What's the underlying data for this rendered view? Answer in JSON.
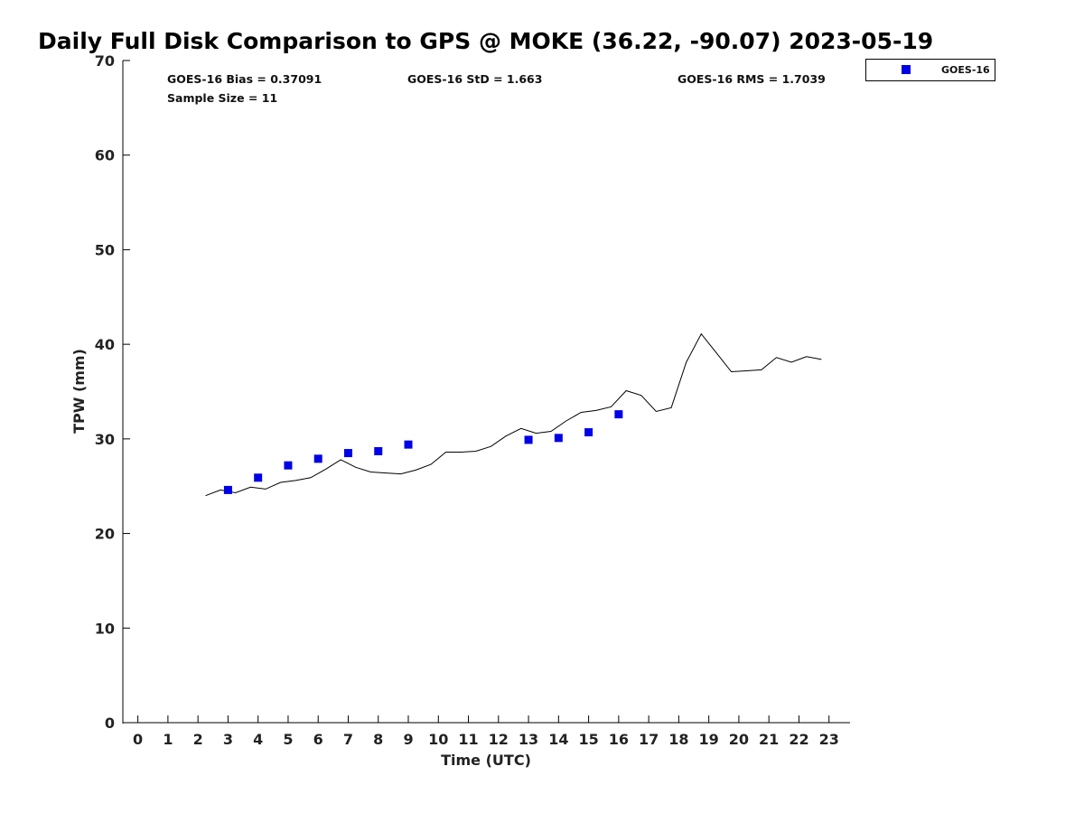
{
  "chart_data": {
    "type": "scatter",
    "title": "Daily Full Disk Comparison to GPS @ MOKE (36.22, -90.07) 2023-05-19",
    "xlabel": "Time (UTC)",
    "ylabel": "TPW (mm)",
    "xlim": [
      -0.5,
      23.7
    ],
    "ylim": [
      0,
      70
    ],
    "x_ticks": [
      0,
      1,
      2,
      3,
      4,
      5,
      6,
      7,
      8,
      9,
      10,
      11,
      12,
      13,
      14,
      15,
      16,
      17,
      18,
      19,
      20,
      21,
      22,
      23
    ],
    "y_ticks": [
      0,
      10,
      20,
      30,
      40,
      50,
      60,
      70
    ],
    "grid": false,
    "legend_position": "top-right",
    "stats": {
      "bias": "GOES-16 Bias = 0.37091",
      "std": "GOES-16 StD = 1.663",
      "rms": "GOES-16 RMS = 1.7039",
      "sample_size": "Sample Size = 11"
    },
    "series": [
      {
        "name": "GOES-16",
        "kind": "scatter",
        "marker": "square",
        "color": "#0000e6",
        "x": [
          3,
          4,
          5,
          6,
          7,
          8,
          9,
          13,
          14,
          15,
          16
        ],
        "y": [
          24.6,
          25.9,
          27.2,
          27.9,
          28.5,
          28.7,
          29.4,
          29.9,
          30.1,
          30.7,
          32.6
        ]
      },
      {
        "kind": "line",
        "color": "#000000",
        "x": [
          2.25,
          2.75,
          3.25,
          3.75,
          4.25,
          4.75,
          5.25,
          5.75,
          6.25,
          6.75,
          7.25,
          7.75,
          8.25,
          8.75,
          9.25,
          9.75,
          10.25,
          10.75,
          11.25,
          11.75,
          12.25,
          12.75,
          13.25,
          13.75,
          14.25,
          14.75,
          15.25,
          15.75,
          16.25,
          16.75,
          17.25,
          17.75,
          18.25,
          18.75,
          19.25,
          19.75,
          20.25,
          20.75,
          21.25,
          21.75,
          22.25,
          22.75
        ],
        "y": [
          24.0,
          24.6,
          24.3,
          24.9,
          24.7,
          25.4,
          25.6,
          25.9,
          26.8,
          27.8,
          27.0,
          26.5,
          26.4,
          26.3,
          26.7,
          27.3,
          28.6,
          28.6,
          28.7,
          29.2,
          30.3,
          31.1,
          30.6,
          30.8,
          31.9,
          32.8,
          33.0,
          33.4,
          35.1,
          34.6,
          32.9,
          33.3,
          38.1,
          41.1,
          39.1,
          37.1,
          37.2,
          37.3,
          38.6,
          38.1,
          38.7,
          38.4
        ]
      }
    ]
  }
}
